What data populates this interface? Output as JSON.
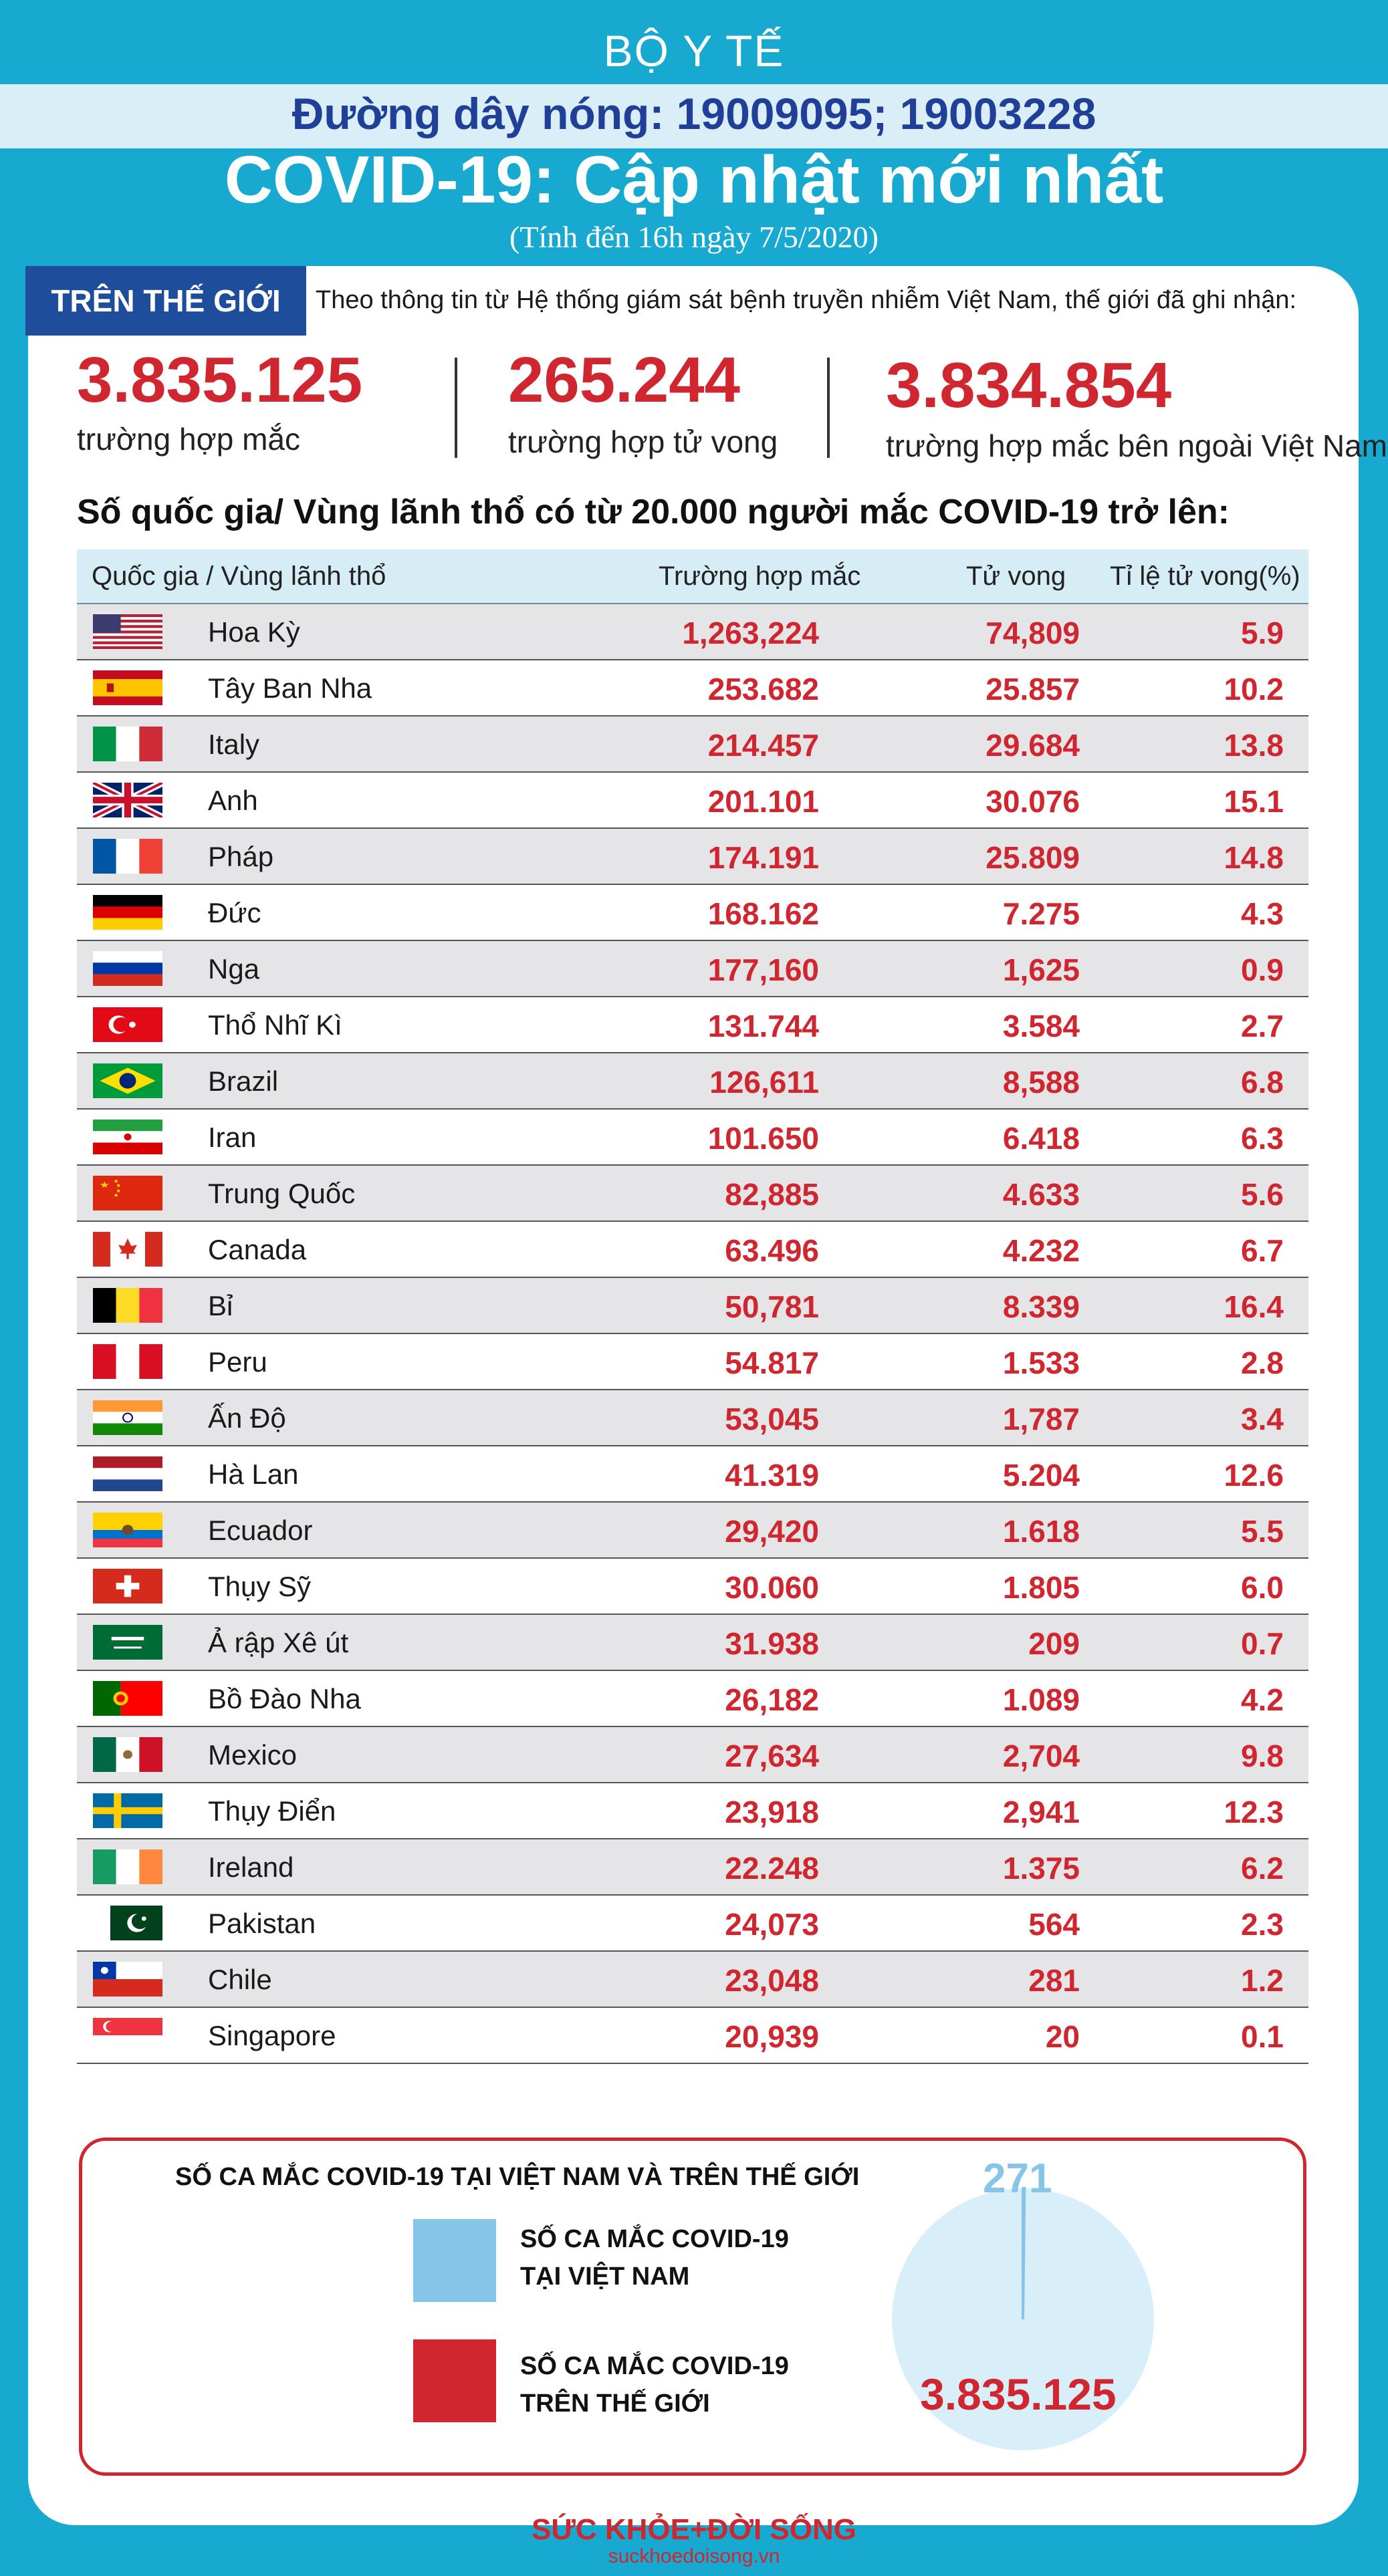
{
  "header": {
    "org": "BỘ Y TẾ",
    "hotline": "Đường dây nóng: 19009095; 19003228",
    "title": "COVID-19: Cập nhật mới nhất",
    "subtitle": "(Tính đến 16h ngày 7/5/2020)"
  },
  "world": {
    "tag": "TRÊN THẾ GIỚI",
    "intro": "Theo thông tin từ Hệ thống giám sát bệnh truyền nhiễm Việt Nam, thế giới đã ghi nhận:",
    "stats": [
      {
        "value": "3.835.125",
        "label": "trường hợp mắc"
      },
      {
        "value": "265.244",
        "label": "trường hợp tử vong"
      },
      {
        "value": "3.834.854",
        "label": "trường hợp  mắc bên ngoài Việt Nam"
      }
    ]
  },
  "table": {
    "heading": "Số quốc gia/ Vùng lãnh thổ có từ 20.000 người  mắc COVID-19 trở lên:",
    "columns": [
      "Quốc gia / Vùng lãnh thổ",
      "Trường hợp mắc",
      "Tử vong",
      "Tỉ lệ tử vong(%)"
    ],
    "rows": [
      {
        "flag": "flag-us",
        "country": "Hoa Kỳ",
        "cases": "1,263,224",
        "deaths": "74,809",
        "rate": "5.9"
      },
      {
        "flag": "flag-es",
        "country": "Tây Ban Nha",
        "cases": "253.682",
        "deaths": "25.857",
        "rate": "10.2"
      },
      {
        "flag": "flag-it",
        "country": "Italy",
        "cases": "214.457",
        "deaths": "29.684",
        "rate": "13.8"
      },
      {
        "flag": "flag-uk",
        "country": "Anh",
        "cases": "201.101",
        "deaths": "30.076",
        "rate": "15.1"
      },
      {
        "flag": "flag-fr",
        "country": "Pháp",
        "cases": "174.191",
        "deaths": "25.809",
        "rate": "14.8"
      },
      {
        "flag": "flag-de",
        "country": "Đức",
        "cases": "168.162",
        "deaths": "7.275",
        "rate": "4.3"
      },
      {
        "flag": "flag-ru",
        "country": "Nga",
        "cases": "177,160",
        "deaths": "1,625",
        "rate": "0.9"
      },
      {
        "flag": "flag-tr",
        "country": "Thổ Nhĩ Kì",
        "cases": "131.744",
        "deaths": "3.584",
        "rate": "2.7"
      },
      {
        "flag": "flag-br",
        "country": "Brazil",
        "cases": "126,611",
        "deaths": "8,588",
        "rate": "6.8"
      },
      {
        "flag": "flag-ir",
        "country": "Iran",
        "cases": "101.650",
        "deaths": "6.418",
        "rate": "6.3"
      },
      {
        "flag": "flag-cn",
        "country": "Trung Quốc",
        "cases": "82,885",
        "deaths": "4.633",
        "rate": "5.6"
      },
      {
        "flag": "flag-ca",
        "country": "Canada",
        "cases": "63.496",
        "deaths": "4.232",
        "rate": "6.7"
      },
      {
        "flag": "flag-be",
        "country": "Bỉ",
        "cases": "50,781",
        "deaths": "8.339",
        "rate": "16.4"
      },
      {
        "flag": "flag-pe",
        "country": "Peru",
        "cases": "54.817",
        "deaths": "1.533",
        "rate": "2.8"
      },
      {
        "flag": "flag-in",
        "country": "Ấn Độ",
        "cases": "53,045",
        "deaths": "1,787",
        "rate": "3.4"
      },
      {
        "flag": "flag-nl",
        "country": "Hà Lan",
        "cases": "41.319",
        "deaths": "5.204",
        "rate": "12.6"
      },
      {
        "flag": "flag-ec",
        "country": "Ecuador",
        "cases": "29,420",
        "deaths": "1.618",
        "rate": "5.5"
      },
      {
        "flag": "flag-ch",
        "country": "Thụy Sỹ",
        "cases": "30.060",
        "deaths": "1.805",
        "rate": "6.0"
      },
      {
        "flag": "flag-sa",
        "country": "Ả rập Xê út",
        "cases": "31.938",
        "deaths": "209",
        "rate": "0.7"
      },
      {
        "flag": "flag-pt",
        "country": "Bồ Đào Nha",
        "cases": "26,182",
        "deaths": "1.089",
        "rate": "4.2"
      },
      {
        "flag": "flag-mx",
        "country": "Mexico",
        "cases": "27,634",
        "deaths": "2,704",
        "rate": "9.8"
      },
      {
        "flag": "flag-se",
        "country": "Thụy Điển",
        "cases": "23,918",
        "deaths": "2,941",
        "rate": "12.3"
      },
      {
        "flag": "flag-ie",
        "country": "Ireland",
        "cases": "22.248",
        "deaths": "1.375",
        "rate": "6.2"
      },
      {
        "flag": "flag-pk",
        "country": "Pakistan",
        "cases": "24,073",
        "deaths": "564",
        "rate": "2.3"
      },
      {
        "flag": "flag-cl",
        "country": "Chile",
        "cases": "23,048",
        "deaths": "281",
        "rate": "1.2"
      },
      {
        "flag": "flag-sg",
        "country": "Singapore",
        "cases": "20,939",
        "deaths": "20",
        "rate": "0.1"
      }
    ]
  },
  "chart_data": {
    "type": "pie",
    "title": "SỐ CA MẮC COVID-19 TẠI VIỆT NAM VÀ TRÊN THẾ GIỚI",
    "slices": [
      {
        "name": "SỐ CA MẮC COVID-19 TẠI VIỆT NAM",
        "value": 271,
        "label": "271",
        "color": "#86c4e8",
        "line1": "SỐ CA MẮC COVID-19",
        "line2": "TẠI VIỆT NAM"
      },
      {
        "name": "SỐ CA MẮC COVID-19 TRÊN THẾ GIỚI",
        "value": 3835125,
        "label": "3.835.125",
        "color": "#d0262f",
        "line1": "SỐ CA MẮC COVID-19",
        "line2": "TRÊN THẾ GIỚI"
      }
    ],
    "pie_fill": "#d8effa"
  },
  "footer": {
    "logo": "SỨC KHỎE+ĐỜI SỐNG",
    "url": "suckhoedoisong.vn"
  },
  "colors": {
    "background": "#17a9cf",
    "accent_red": "#d0262f",
    "tag_blue": "#1e4d9c"
  }
}
